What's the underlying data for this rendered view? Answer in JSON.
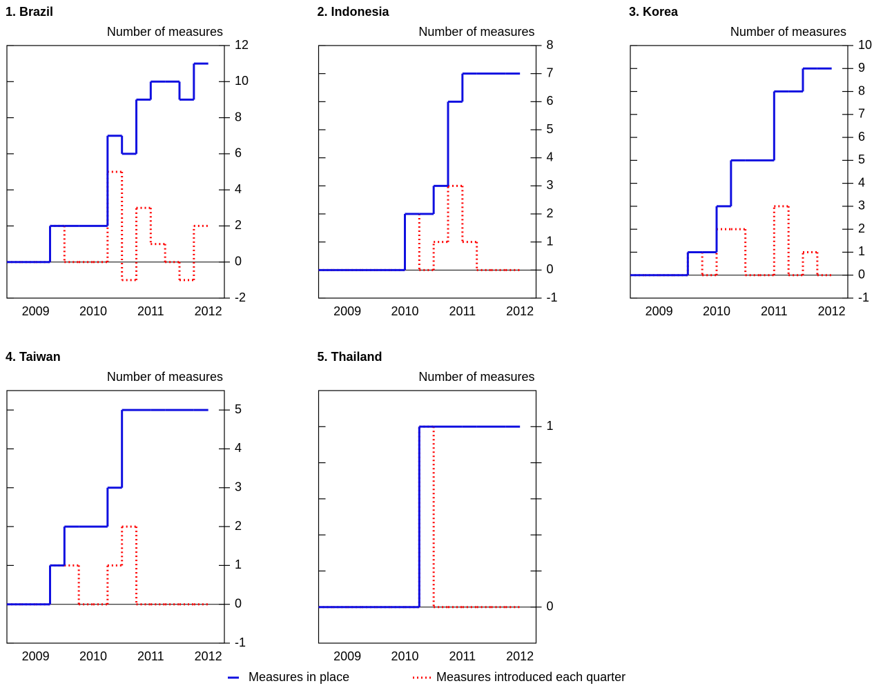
{
  "chart_data": [
    {
      "type": "line",
      "step": true,
      "title": "1. Brazil",
      "y_label": "Number of measures",
      "x": [
        2009,
        2009.25,
        2009.5,
        2009.75,
        2010,
        2010.25,
        2010.5,
        2010.75,
        2011,
        2011.25,
        2011.5,
        2011.75,
        2012,
        2012.25
      ],
      "series": [
        {
          "values": [
            0,
            0,
            0,
            2,
            2,
            2,
            2,
            7,
            6,
            9,
            10,
            10,
            9,
            11
          ]
        },
        {
          "values": [
            0,
            0,
            0,
            2,
            0,
            0,
            0,
            5,
            -1,
            3,
            1,
            0,
            -1,
            2
          ]
        }
      ],
      "xlim": [
        2009,
        2012.78
      ],
      "xticks": [
        {
          "value": 2009.5,
          "label": "2009"
        },
        {
          "value": 2010.5,
          "label": "2010"
        },
        {
          "value": 2011.5,
          "label": "2011"
        },
        {
          "value": 2012.5,
          "label": "2012"
        }
      ],
      "ylim": [
        -2,
        12
      ],
      "yticks": [
        -2,
        0,
        2,
        4,
        6,
        8,
        10,
        12
      ],
      "zero_line": true
    },
    {
      "type": "line",
      "step": true,
      "title": "2. Indonesia",
      "y_label": "Number of measures",
      "x": [
        2009,
        2009.25,
        2009.5,
        2009.75,
        2010,
        2010.25,
        2010.5,
        2010.75,
        2011,
        2011.25,
        2011.5,
        2011.75,
        2012,
        2012.25
      ],
      "series": [
        {
          "values": [
            0,
            0,
            0,
            0,
            0,
            0,
            2,
            2,
            3,
            6,
            7,
            7,
            7,
            7
          ]
        },
        {
          "values": [
            0,
            0,
            0,
            0,
            0,
            0,
            2,
            0,
            1,
            3,
            1,
            0,
            0,
            0
          ]
        }
      ],
      "xlim": [
        2009,
        2012.78
      ],
      "xticks": [
        {
          "value": 2009.5,
          "label": "2009"
        },
        {
          "value": 2010.5,
          "label": "2010"
        },
        {
          "value": 2011.5,
          "label": "2011"
        },
        {
          "value": 2012.5,
          "label": "2012"
        }
      ],
      "ylim": [
        -1,
        8
      ],
      "yticks": [
        -1,
        0,
        1,
        2,
        3,
        4,
        5,
        6,
        7,
        8
      ],
      "zero_line": true
    },
    {
      "type": "line",
      "step": true,
      "title": "3. Korea",
      "y_label": "Number of measures",
      "x": [
        2009,
        2009.25,
        2009.5,
        2009.75,
        2010,
        2010.25,
        2010.5,
        2010.75,
        2011,
        2011.25,
        2011.5,
        2011.75,
        2012,
        2012.25
      ],
      "series": [
        {
          "values": [
            0,
            0,
            0,
            0,
            1,
            1,
            3,
            5,
            5,
            5,
            8,
            8,
            9,
            9
          ]
        },
        {
          "values": [
            0,
            0,
            0,
            0,
            1,
            0,
            2,
            2,
            0,
            0,
            3,
            0,
            1,
            0
          ]
        }
      ],
      "xlim": [
        2009,
        2012.78
      ],
      "xticks": [
        {
          "value": 2009.5,
          "label": "2009"
        },
        {
          "value": 2010.5,
          "label": "2010"
        },
        {
          "value": 2011.5,
          "label": "2011"
        },
        {
          "value": 2012.5,
          "label": "2012"
        }
      ],
      "ylim": [
        -1,
        10
      ],
      "yticks": [
        -1,
        0,
        1,
        2,
        3,
        4,
        5,
        6,
        7,
        8,
        9,
        10
      ],
      "zero_line": true
    },
    {
      "type": "line",
      "step": true,
      "title": "4. Taiwan",
      "y_label": "Number of measures",
      "x": [
        2009,
        2009.25,
        2009.5,
        2009.75,
        2010,
        2010.25,
        2010.5,
        2010.75,
        2011,
        2011.25,
        2011.5,
        2011.75,
        2012,
        2012.25
      ],
      "series": [
        {
          "values": [
            0,
            0,
            0,
            1,
            2,
            2,
            2,
            3,
            5,
            5,
            5,
            5,
            5,
            5
          ]
        },
        {
          "values": [
            0,
            0,
            0,
            1,
            1,
            0,
            0,
            1,
            2,
            0,
            0,
            0,
            0,
            0
          ]
        }
      ],
      "xlim": [
        2009,
        2012.78
      ],
      "xticks": [
        {
          "value": 2009.5,
          "label": "2009"
        },
        {
          "value": 2010.5,
          "label": "2010"
        },
        {
          "value": 2011.5,
          "label": "2011"
        },
        {
          "value": 2012.5,
          "label": "2012"
        }
      ],
      "ylim": [
        -1,
        5.5
      ],
      "yticks": [
        -1,
        0,
        1,
        2,
        3,
        4,
        5
      ],
      "zero_line": true
    },
    {
      "type": "line",
      "step": true,
      "title": "5. Thailand",
      "y_label": "Number of measures",
      "x": [
        2009,
        2009.25,
        2009.5,
        2009.75,
        2010,
        2010.25,
        2010.5,
        2010.75,
        2011,
        2011.25,
        2011.5,
        2011.75,
        2012,
        2012.25
      ],
      "series": [
        {
          "values": [
            0,
            0,
            0,
            0,
            0,
            0,
            0,
            1,
            1,
            1,
            1,
            1,
            1,
            1
          ]
        },
        {
          "values": [
            0,
            0,
            0,
            0,
            0,
            0,
            0,
            1,
            0,
            0,
            0,
            0,
            0,
            0
          ]
        }
      ],
      "xlim": [
        2009,
        2012.78
      ],
      "xticks": [
        {
          "value": 2009.5,
          "label": "2009"
        },
        {
          "value": 2010.5,
          "label": "2010"
        },
        {
          "value": 2011.5,
          "label": "2011"
        },
        {
          "value": 2012.5,
          "label": "2012"
        }
      ],
      "ylim": [
        -0.2,
        1.2
      ],
      "yticks": [
        0,
        1
      ],
      "yminorticks": [
        0.2,
        0.4,
        0.6,
        0.8
      ],
      "zero_line": true
    }
  ],
  "legend": [
    {
      "name": "Measures in place",
      "color": "#1010e0",
      "dash": "none"
    },
    {
      "name": "Measures introduced each quarter",
      "color": "#ff0000",
      "dash": "2 4"
    }
  ]
}
